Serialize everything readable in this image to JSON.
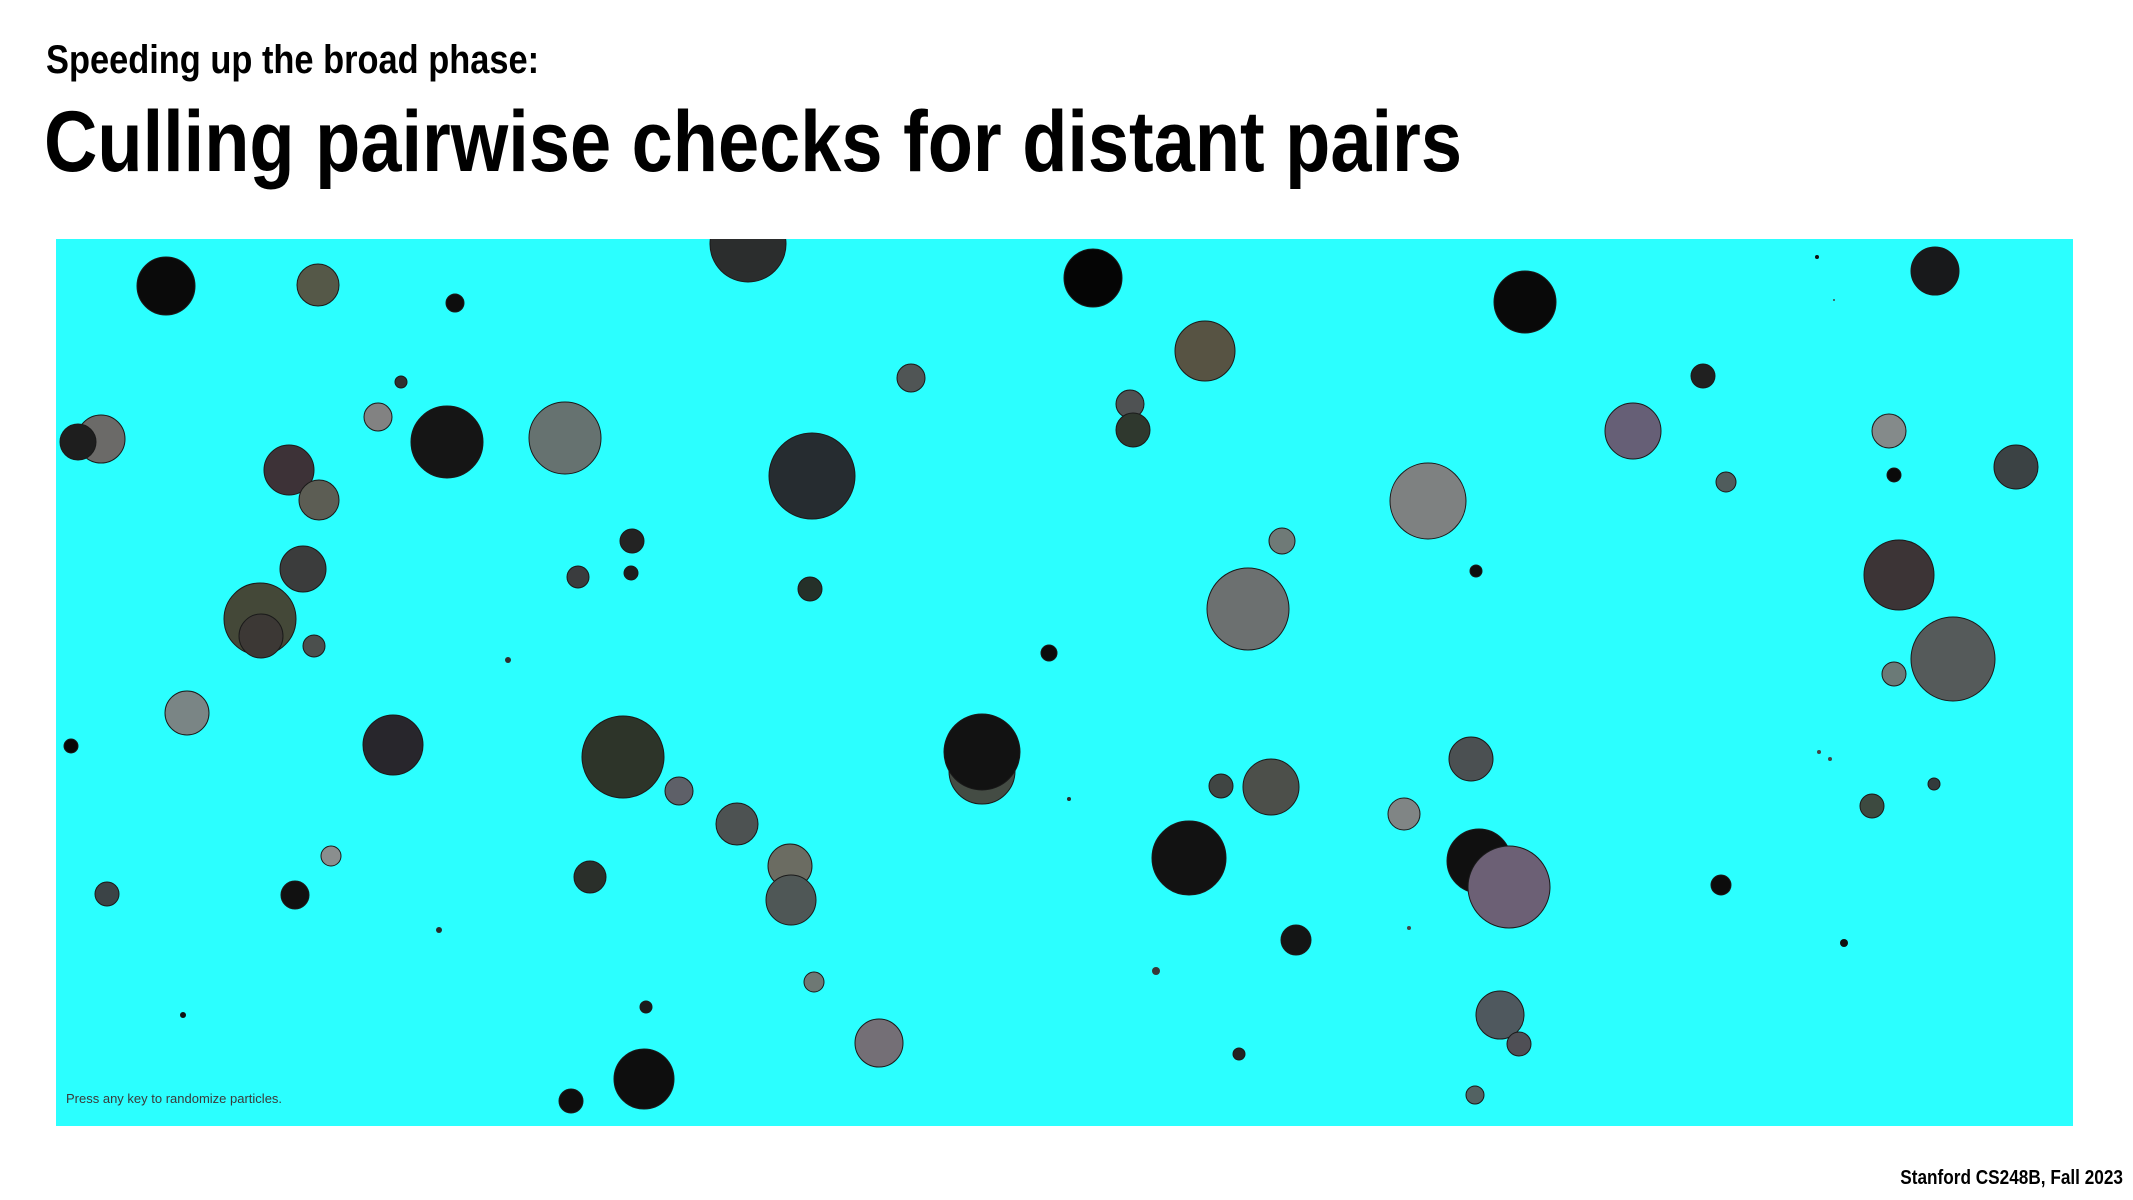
{
  "slide": {
    "subtitle": "Speeding up the broad phase:",
    "title": "Culling pairwise checks for distant pairs",
    "footer": "Stanford CS248B, Fall 2023"
  },
  "demo": {
    "hint": "Press any key to randomize particles.",
    "background_color": "#2bffff",
    "particle_outline": "#1a1a1a"
  }
}
